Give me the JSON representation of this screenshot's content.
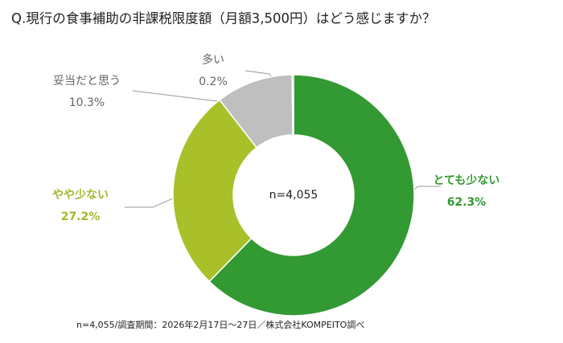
{
  "chart_data": {
    "type": "donut",
    "title": "Q.現行の食事補助の非課税限度額（月額3,500円）はどう感じますか？",
    "center_label": "n=4,055",
    "categories": [
      "とても少ない",
      "やや少ない",
      "妥当だと思う",
      "多い"
    ],
    "values": [
      62.3,
      27.2,
      10.3,
      0.2
    ],
    "value_labels": [
      "62.3%",
      "27.2%",
      "10.3%",
      "0.2%"
    ],
    "colors": [
      "#339933",
      "#a9c02b",
      "#bfbfbf",
      "#7f7f7f"
    ],
    "label_colors": [
      "#339933",
      "#a3b82a",
      "#666666",
      "#666666"
    ],
    "label_bold": [
      true,
      true,
      false,
      false
    ],
    "note": "n=4,055/調査期間：2026年2月17日〜27日／株式会社KOMPEITO調べ"
  }
}
